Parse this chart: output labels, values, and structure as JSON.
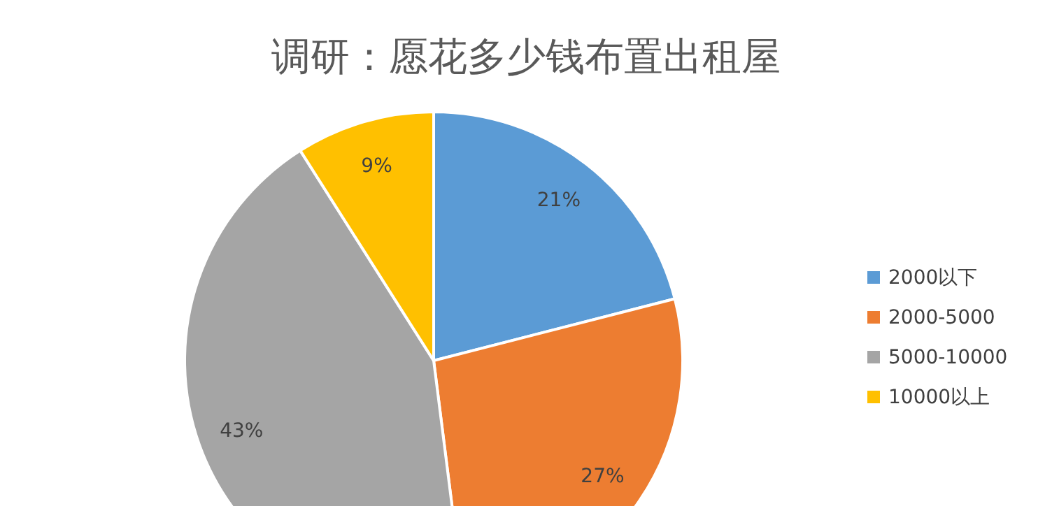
{
  "chart_data": {
    "type": "pie",
    "title": "调研：愿花多少钱布置出租屋",
    "categories": [
      "2000以下",
      "2000-5000",
      "5000-10000",
      "10000以上"
    ],
    "values": [
      21,
      27,
      43,
      9
    ],
    "colors": [
      "#5b9bd5",
      "#ed7d31",
      "#a5a5a5",
      "#ffc000"
    ],
    "value_labels": [
      "21%",
      "27%",
      "43%",
      "9%"
    ],
    "legend": "right"
  }
}
